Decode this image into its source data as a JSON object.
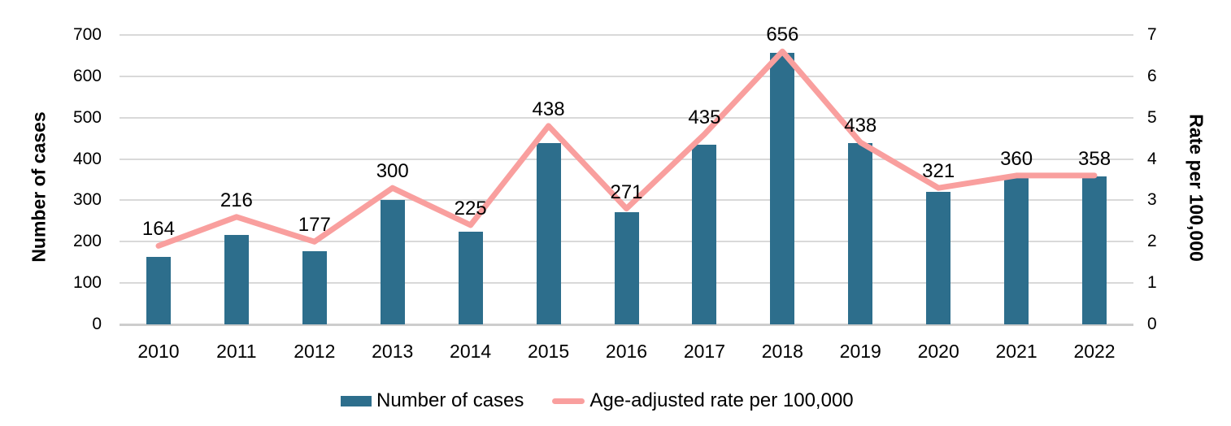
{
  "chart_data": {
    "type": "bar",
    "subtype": "combo-bar-line-dual-axis",
    "title": "",
    "categories": [
      "2010",
      "2011",
      "2012",
      "2013",
      "2014",
      "2015",
      "2016",
      "2017",
      "2018",
      "2019",
      "2020",
      "2021",
      "2022"
    ],
    "series": [
      {
        "name": "Number of cases",
        "type": "bar",
        "axis": "left",
        "color": "#2d6e8c",
        "values": [
          164,
          216,
          177,
          300,
          225,
          438,
          271,
          435,
          656,
          438,
          321,
          360,
          358
        ],
        "data_labels_shown": true
      },
      {
        "name": "Age-adjusted rate per 100,000",
        "type": "line",
        "axis": "right",
        "color": "#f99f9e",
        "values": [
          1.9,
          2.6,
          2.0,
          3.3,
          2.4,
          4.8,
          2.8,
          4.6,
          6.6,
          4.4,
          3.3,
          3.6,
          3.6
        ],
        "data_labels_shown": false
      }
    ],
    "left_axis": {
      "title": "Number of cases",
      "min": 0,
      "max": 700,
      "ticks": [
        "0",
        "100",
        "200",
        "300",
        "400",
        "500",
        "600",
        "700"
      ]
    },
    "right_axis": {
      "title": "Rate per 100,000",
      "min": 0,
      "max": 7,
      "ticks": [
        "0",
        "1",
        "2",
        "3",
        "4",
        "5",
        "6",
        "7"
      ]
    },
    "grid": true,
    "legend_position": "bottom",
    "legend": [
      {
        "label": "Number of cases",
        "swatch": "bar",
        "color": "#2d6e8c"
      },
      {
        "label": "Age-adjusted rate per 100,000",
        "swatch": "line",
        "color": "#f99f9e"
      }
    ]
  },
  "colors": {
    "bar": "#2d6e8c",
    "line": "#f99f9e",
    "gridline": "#d9d9d9",
    "axis_line": "#cdcdcd",
    "text": "#000000",
    "background": "#ffffff"
  }
}
